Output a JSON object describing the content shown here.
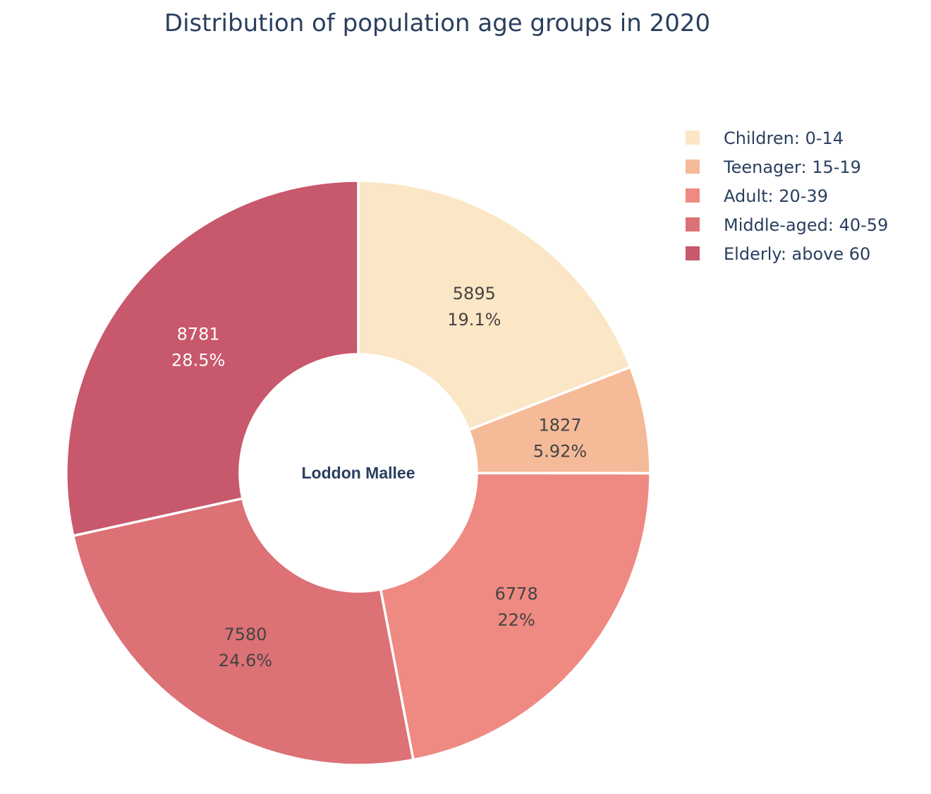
{
  "chart_data": {
    "type": "pie",
    "title": "Distribution of population age groups in 2020",
    "hole_label": "Loddon Mallee",
    "categories": [
      "Children: 0-14",
      "Teenager: 15-19",
      "Adult: 20-39",
      "Middle-aged: 40-59",
      "Elderly: above 60"
    ],
    "values": [
      5895,
      1827,
      6778,
      7580,
      8781
    ],
    "percent_labels": [
      "19.1%",
      "5.92%",
      "22%",
      "24.6%",
      "28.5%"
    ],
    "colors": [
      "#fbe6c5",
      "#f5ba98",
      "#ee8a82",
      "#dc7176",
      "#c8586c"
    ],
    "label_text_colors": [
      "#444444",
      "#444444",
      "#444444",
      "#444444",
      "#ffffff"
    ],
    "legend_position": "top-right",
    "hole": true,
    "direction": "clockwise"
  }
}
